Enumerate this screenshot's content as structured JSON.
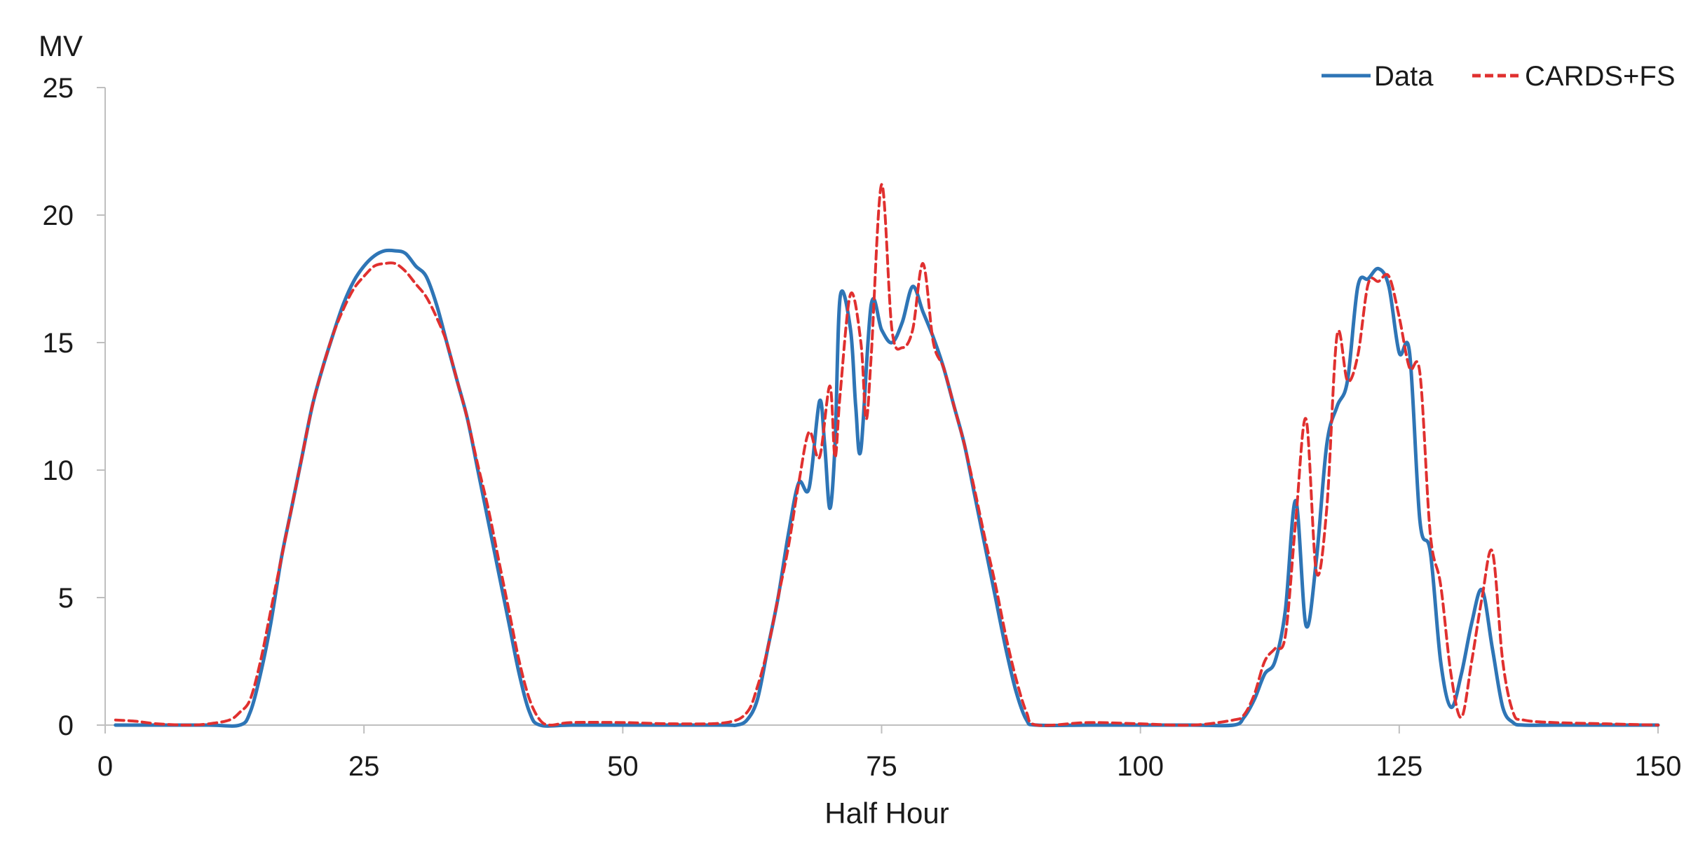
{
  "chart_data": {
    "type": "line",
    "title": "",
    "xlabel": "Half Hour",
    "ylabel": "MV",
    "xlim": [
      0,
      150
    ],
    "ylim": [
      0,
      25
    ],
    "x_ticks": [
      0,
      25,
      50,
      75,
      100,
      125,
      150
    ],
    "y_ticks": [
      0,
      5,
      10,
      15,
      20,
      25
    ],
    "grid": false,
    "legend_position": "top-right",
    "series": [
      {
        "name": "Data",
        "color": "#2E75B6",
        "style": "solid",
        "points": [
          [
            1,
            0
          ],
          [
            5,
            0
          ],
          [
            10,
            0
          ],
          [
            13,
            0
          ],
          [
            14,
            0.5
          ],
          [
            15,
            2
          ],
          [
            16,
            4
          ],
          [
            17,
            6.5
          ],
          [
            18,
            8.5
          ],
          [
            19,
            10.5
          ],
          [
            20,
            12.5
          ],
          [
            21,
            14
          ],
          [
            22,
            15.3
          ],
          [
            23,
            16.5
          ],
          [
            24,
            17.4
          ],
          [
            25,
            18
          ],
          [
            26,
            18.4
          ],
          [
            27,
            18.6
          ],
          [
            28,
            18.6
          ],
          [
            29,
            18.5
          ],
          [
            30,
            18
          ],
          [
            31,
            17.6
          ],
          [
            32,
            16.5
          ],
          [
            33,
            15
          ],
          [
            34,
            13.5
          ],
          [
            35,
            12
          ],
          [
            36,
            10
          ],
          [
            37,
            8
          ],
          [
            38,
            6
          ],
          [
            39,
            4
          ],
          [
            40,
            2
          ],
          [
            41,
            0.5
          ],
          [
            42,
            0
          ],
          [
            45,
            0
          ],
          [
            50,
            0
          ],
          [
            55,
            0
          ],
          [
            60,
            0
          ],
          [
            61,
            0
          ],
          [
            62,
            0.2
          ],
          [
            63,
            1
          ],
          [
            64,
            3
          ],
          [
            65,
            5
          ],
          [
            66,
            7.5
          ],
          [
            67,
            9.5
          ],
          [
            68,
            9.3
          ],
          [
            69,
            12.7
          ],
          [
            69.5,
            11
          ],
          [
            70,
            8.5
          ],
          [
            70.5,
            11
          ],
          [
            71,
            16.8
          ],
          [
            72,
            15.5
          ],
          [
            72.5,
            12.5
          ],
          [
            73,
            10.8
          ],
          [
            74,
            16.5
          ],
          [
            75,
            15.5
          ],
          [
            76,
            15
          ],
          [
            77,
            15.8
          ],
          [
            78,
            17.2
          ],
          [
            79,
            16.2
          ],
          [
            80,
            15.2
          ],
          [
            81,
            14
          ],
          [
            82,
            12.5
          ],
          [
            83,
            11
          ],
          [
            84,
            9
          ],
          [
            85,
            7
          ],
          [
            86,
            5
          ],
          [
            87,
            3
          ],
          [
            88,
            1.3
          ],
          [
            89,
            0.2
          ],
          [
            90,
            0
          ],
          [
            95,
            0
          ],
          [
            100,
            0
          ],
          [
            105,
            0
          ],
          [
            109,
            0
          ],
          [
            110,
            0.3
          ],
          [
            111,
            1
          ],
          [
            112,
            2
          ],
          [
            113,
            2.5
          ],
          [
            114,
            4.5
          ],
          [
            115,
            8.8
          ],
          [
            116,
            3.9
          ],
          [
            117,
            6.5
          ],
          [
            118,
            11
          ],
          [
            119,
            12.5
          ],
          [
            120,
            13.5
          ],
          [
            121,
            17.2
          ],
          [
            122,
            17.5
          ],
          [
            123,
            17.9
          ],
          [
            124,
            17.2
          ],
          [
            125,
            14.6
          ],
          [
            126,
            14.6
          ],
          [
            127,
            8
          ],
          [
            128,
            6.8
          ],
          [
            129,
            2.5
          ],
          [
            130,
            0.7
          ],
          [
            131,
            2
          ],
          [
            132,
            4
          ],
          [
            133,
            5.3
          ],
          [
            134,
            3
          ],
          [
            135,
            0.7
          ],
          [
            136,
            0.1
          ],
          [
            137,
            0
          ],
          [
            140,
            0
          ],
          [
            145,
            0
          ],
          [
            150,
            0
          ]
        ]
      },
      {
        "name": "CARDS+FS",
        "color": "#E0302F",
        "style": "dashed",
        "points": [
          [
            1,
            0.2
          ],
          [
            3,
            0.15
          ],
          [
            5,
            0.05
          ],
          [
            8,
            0
          ],
          [
            10,
            0.05
          ],
          [
            12,
            0.2
          ],
          [
            13,
            0.5
          ],
          [
            14,
            1
          ],
          [
            15,
            2.5
          ],
          [
            16,
            4.5
          ],
          [
            17,
            6.5
          ],
          [
            18,
            8.5
          ],
          [
            19,
            10.5
          ],
          [
            20,
            12.5
          ],
          [
            21,
            14
          ],
          [
            22,
            15.3
          ],
          [
            23,
            16.3
          ],
          [
            24,
            17.1
          ],
          [
            25,
            17.6
          ],
          [
            26,
            18
          ],
          [
            27,
            18.1
          ],
          [
            28,
            18.1
          ],
          [
            29,
            17.8
          ],
          [
            30,
            17.3
          ],
          [
            31,
            16.8
          ],
          [
            32,
            16
          ],
          [
            33,
            15
          ],
          [
            34,
            13.5
          ],
          [
            35,
            12
          ],
          [
            36,
            10.2
          ],
          [
            37,
            8.5
          ],
          [
            38,
            6.5
          ],
          [
            39,
            4.5
          ],
          [
            40,
            2.5
          ],
          [
            41,
            1
          ],
          [
            42,
            0.2
          ],
          [
            43,
            0
          ],
          [
            45,
            0.1
          ],
          [
            50,
            0.1
          ],
          [
            55,
            0.05
          ],
          [
            60,
            0.1
          ],
          [
            62,
            0.5
          ],
          [
            63,
            1.5
          ],
          [
            64,
            3
          ],
          [
            65,
            5
          ],
          [
            66,
            7
          ],
          [
            67,
            9.5
          ],
          [
            68,
            11.5
          ],
          [
            69,
            10.5
          ],
          [
            70,
            13.3
          ],
          [
            70.5,
            10.5
          ],
          [
            71,
            13
          ],
          [
            72,
            16.9
          ],
          [
            73,
            15
          ],
          [
            73.5,
            12
          ],
          [
            74,
            14.5
          ],
          [
            75,
            21.2
          ],
          [
            76,
            15.5
          ],
          [
            77,
            14.8
          ],
          [
            78,
            15.5
          ],
          [
            79,
            18.1
          ],
          [
            80,
            15
          ],
          [
            81,
            14
          ],
          [
            82,
            12.5
          ],
          [
            83,
            11
          ],
          [
            84,
            9.2
          ],
          [
            85,
            7.3
          ],
          [
            86,
            5.5
          ],
          [
            87,
            3.5
          ],
          [
            88,
            1.8
          ],
          [
            89,
            0.5
          ],
          [
            90,
            0
          ],
          [
            95,
            0.1
          ],
          [
            100,
            0.05
          ],
          [
            105,
            0
          ],
          [
            109,
            0.2
          ],
          [
            110,
            0.4
          ],
          [
            111,
            1.2
          ],
          [
            112,
            2.5
          ],
          [
            113,
            3
          ],
          [
            114,
            3.5
          ],
          [
            115,
            8
          ],
          [
            116,
            12
          ],
          [
            117,
            6
          ],
          [
            118,
            8.5
          ],
          [
            119,
            15.3
          ],
          [
            120,
            13.5
          ],
          [
            121,
            14.5
          ],
          [
            122,
            17.3
          ],
          [
            123,
            17.4
          ],
          [
            124,
            17.6
          ],
          [
            125,
            16
          ],
          [
            126,
            14
          ],
          [
            127,
            13.8
          ],
          [
            128,
            7.5
          ],
          [
            129,
            5.5
          ],
          [
            130,
            2
          ],
          [
            131,
            0.3
          ],
          [
            132,
            2.5
          ],
          [
            133,
            5
          ],
          [
            134,
            6.8
          ],
          [
            135,
            2.5
          ],
          [
            136,
            0.5
          ],
          [
            137,
            0.2
          ],
          [
            140,
            0.1
          ],
          [
            145,
            0.05
          ],
          [
            150,
            0
          ]
        ]
      }
    ]
  }
}
